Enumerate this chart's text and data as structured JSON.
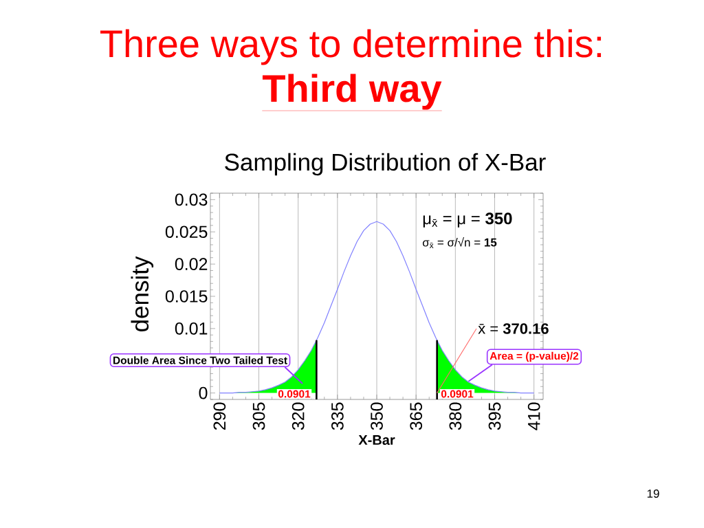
{
  "chart_data": {
    "type": "line",
    "title": "Three ways to determine this:",
    "subtitle": "Third way",
    "xlabel": "X-Bar",
    "ylabel": "density",
    "xlim": [
      286.5,
      413.5
    ],
    "ylim": [
      -0.001,
      0.031
    ],
    "xticks": [
      290,
      305,
      320,
      335,
      350,
      365,
      380,
      395,
      410
    ],
    "yticks": [
      0,
      0.01,
      0.015,
      0.02,
      0.025,
      0.03
    ],
    "grid": "x",
    "series": [
      {
        "type": "area",
        "color": "#00ff00",
        "x": [
          290,
          292.5,
          295,
          297.5,
          300,
          302.5,
          305,
          307.5,
          310,
          312.5,
          315,
          317.5,
          320,
          322.5,
          325,
          327
        ],
        "values": [
          0,
          0,
          0,
          0.0001,
          0.0001,
          0.0002,
          0.0003,
          0.0005,
          0.0008,
          0.0012,
          0.0017,
          0.0025,
          0.0036,
          0.005,
          0.0066,
          0.0082
        ]
      },
      {
        "type": "area",
        "color": "#00ff00",
        "x": [
          373,
          375,
          377.5,
          380,
          382.5,
          385,
          387.5,
          390,
          392.5,
          395,
          397.5,
          400,
          402.5,
          405,
          407.5,
          410
        ],
        "values": [
          0.0082,
          0.0066,
          0.005,
          0.0036,
          0.0025,
          0.0017,
          0.0012,
          0.0008,
          0.0005,
          0.0003,
          0.0002,
          0.0001,
          0.0001,
          0,
          0,
          0
        ]
      },
      {
        "color": "#8080ff",
        "x": [
          290,
          292.5,
          295,
          297.5,
          300,
          302.5,
          305,
          307.5,
          310,
          312.5,
          315,
          317.5,
          320,
          322.5,
          325,
          327.5,
          330,
          332.5,
          335,
          337.5,
          340,
          342.5,
          345,
          347.5,
          350,
          352.5,
          355,
          357.5,
          360,
          362.5,
          365,
          367.5,
          370,
          372.5,
          375,
          377.5,
          380,
          382.5,
          385,
          387.5,
          390,
          392.5,
          395,
          397.5,
          400,
          402.5,
          405,
          407.5,
          410
        ],
        "values": [
          0,
          0,
          0,
          0.0001,
          0.0001,
          0.0002,
          0.0003,
          0.0005,
          0.0008,
          0.0012,
          0.0017,
          0.0025,
          0.0036,
          0.005,
          0.0066,
          0.0086,
          0.0109,
          0.0135,
          0.0161,
          0.0188,
          0.0213,
          0.0235,
          0.0252,
          0.0262,
          0.0266,
          0.0262,
          0.0252,
          0.0235,
          0.0213,
          0.0188,
          0.0161,
          0.0135,
          0.0109,
          0.0086,
          0.0066,
          0.005,
          0.0036,
          0.0025,
          0.0017,
          0.0012,
          0.0008,
          0.0005,
          0.0003,
          0.0002,
          0.0001,
          0.0001,
          0,
          0,
          0
        ]
      }
    ],
    "ref_lines": [
      {
        "axis": "x",
        "value": 327,
        "color": "#000000"
      },
      {
        "axis": "x",
        "value": 373,
        "color": "#000000"
      }
    ],
    "annotations": [
      "Sampling Distribution of X-Bar",
      "μ$_{x̄}$ = μ = **350**",
      "σ$_{x̄}$ = σ/√n = **15**",
      {
        "text": "x̄ = **370.16**",
        "x": 373,
        "y": 0
      },
      "Double Area Since Two Tailed Test",
      {
        "text": "Area = (p-value)/2",
        "x": 385,
        "y": 0.0018
      },
      "0.0901",
      "0.0901",
      "19"
    ]
  }
}
